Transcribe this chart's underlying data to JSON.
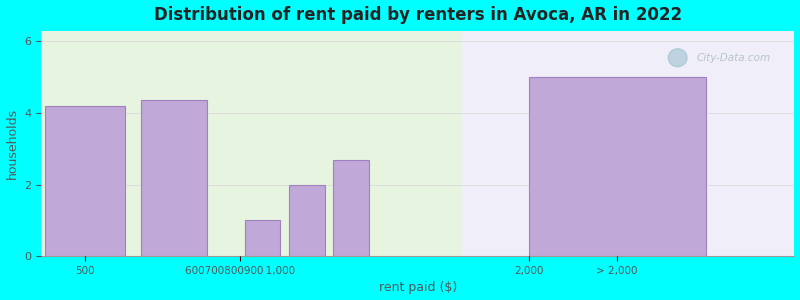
{
  "title": "Distribution of rent paid by renters in Avoca, AR in 2022",
  "xlabel": "rent paid ($)",
  "ylabel": "households",
  "background_color": "#00ffff",
  "bar_color": "#c0a8d8",
  "bar_edge_color": "#a080c0",
  "ylim": [
    0,
    6.3
  ],
  "yticks": [
    0,
    2,
    4,
    6
  ],
  "watermark": "City-Data.com",
  "bar_categories": [
    "500",
    "600",
    "700",
    "800",
    "900",
    "> 2,000"
  ],
  "bar_values": [
    4.2,
    4.35,
    1.0,
    2.0,
    2.7,
    5.0
  ],
  "xtick_labels": [
    "500",
    "600700800900 1,000",
    "2,000",
    "> 2,000"
  ],
  "plot_bg_left_color": "#e8f5e0",
  "plot_bg_right_color": "#f8f8ff",
  "grid_color": "#dddddd"
}
